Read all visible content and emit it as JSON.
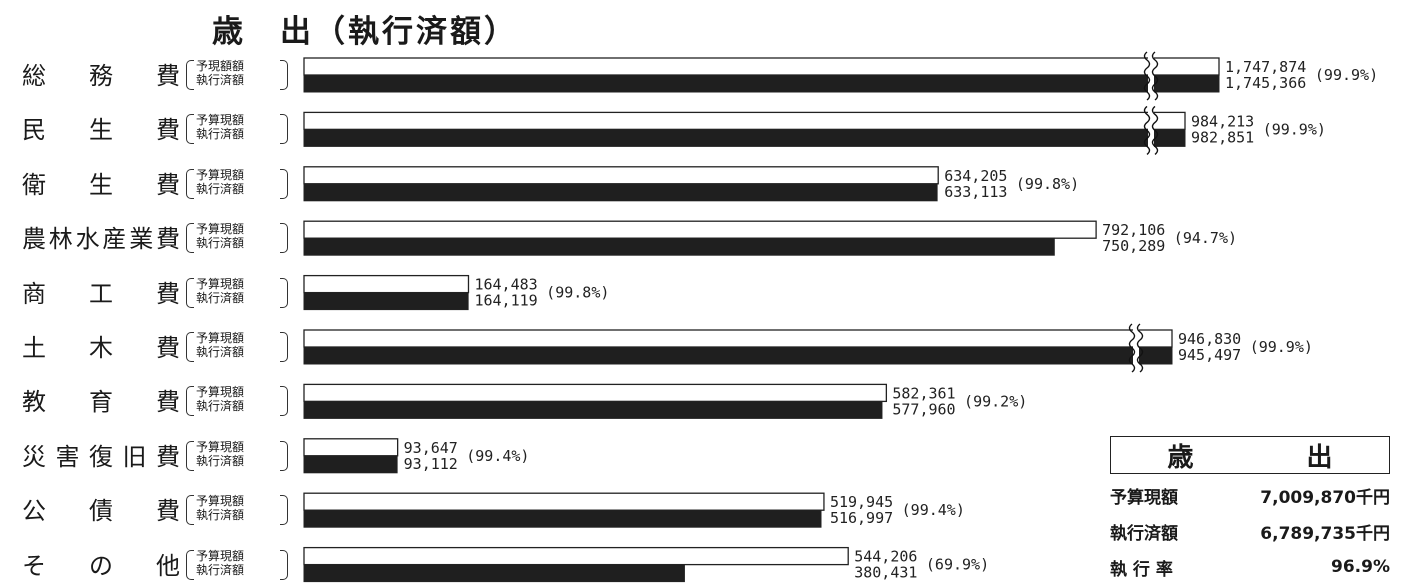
{
  "chart_data": {
    "type": "bar",
    "title": "歳　出（執行済額）",
    "series_labels": [
      "〔予算現額〕",
      "〔執行済額〕"
    ],
    "series_label_variants": {
      "first_row_budget": "〔予現額額〕"
    },
    "categories": [
      "総　務　費",
      "民　生　費",
      "衛　生　費",
      "農林水産業費",
      "商　工　費",
      "土　木　費",
      "教　育　費",
      "災害復旧費",
      "公　債　費",
      "そ　の　他"
    ],
    "series": [
      {
        "values": [
          1747874,
          984213,
          634205,
          792106,
          164483,
          946830,
          582361,
          93647,
          519945,
          544206
        ],
        "labels": [
          "1,747,874",
          "984,213",
          "634,205",
          "792,106",
          "164,483",
          "946,830",
          "582,361",
          "93,647",
          "519,945",
          "544,206"
        ]
      },
      {
        "values": [
          1745366,
          982851,
          633113,
          750289,
          164119,
          945497,
          577960,
          93112,
          516997,
          380431
        ],
        "labels": [
          "1,745,366",
          "982,851",
          "633,113",
          "750,289",
          "164,119",
          "945,497",
          "577,960",
          "93,112",
          "516,997",
          "380,431"
        ]
      }
    ],
    "rates": [
      "(99.9%)",
      "(99.9%)",
      "(99.8%)",
      "(94.7%)",
      "(99.8%)",
      "(99.9%)",
      "(99.2%)",
      "(99.4%)",
      "(99.4%)",
      "(69.9%)"
    ],
    "broken_axis_categories": [
      "総　務　費",
      "民　生　費",
      "土　木　費"
    ],
    "colors": {
      "budget_fill": "#ffffff",
      "executed_fill": "#1f1f1f",
      "stroke": "#222222"
    }
  },
  "summary": {
    "heading_left": "歳",
    "heading_right": "出",
    "rows": [
      {
        "label": "予算現額",
        "value": "7,009,870千円"
      },
      {
        "label": "執行済額",
        "value": "6,789,735千円"
      },
      {
        "label": "執 行 率",
        "value": "96.9%"
      }
    ]
  }
}
